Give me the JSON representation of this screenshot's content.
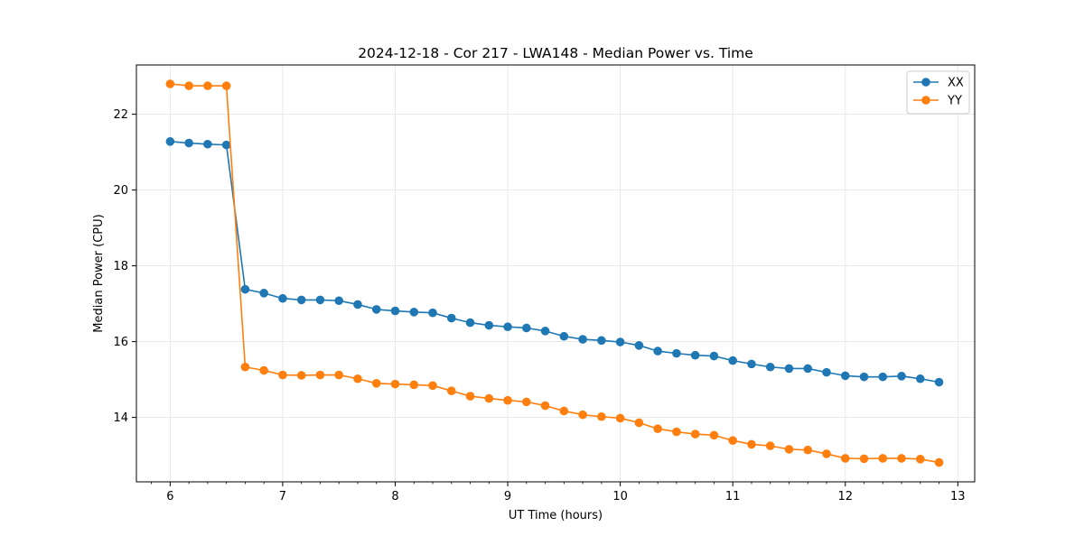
{
  "chart_data": {
    "type": "line",
    "title": "2024-12-18 - Cor 217 - LWA148 - Median Power vs. Time",
    "xlabel": "UT Time (hours)",
    "ylabel": "Median Power (CPU)",
    "xlim": [
      5.7,
      13.15
    ],
    "ylim": [
      12.3,
      23.3
    ],
    "xticks": [
      6,
      7,
      8,
      9,
      10,
      11,
      12,
      13
    ],
    "xtick_labels": [
      "6",
      "7",
      "8",
      "9",
      "10",
      "11",
      "12",
      "13"
    ],
    "yticks": [
      14,
      16,
      18,
      20,
      22
    ],
    "ytick_labels": [
      "14",
      "16",
      "18",
      "20",
      "22"
    ],
    "grid": true,
    "legend_position": "top-right",
    "x": [
      6.0,
      6.1667,
      6.3333,
      6.5,
      6.6667,
      6.8333,
      7.0,
      7.1667,
      7.3333,
      7.5,
      7.6667,
      7.8333,
      8.0,
      8.1667,
      8.3333,
      8.5,
      8.6667,
      8.8333,
      9.0,
      9.1667,
      9.3333,
      9.5,
      9.6667,
      9.8333,
      10.0,
      10.1667,
      10.3333,
      10.5,
      10.6667,
      10.8333,
      11.0,
      11.1667,
      11.3333,
      11.5,
      11.6667,
      11.8333,
      12.0,
      12.1667,
      12.3333,
      12.5,
      12.6667,
      12.8333
    ],
    "series": [
      {
        "name": "XX",
        "color": "#1f77b4",
        "values": [
          21.28,
          21.24,
          21.21,
          21.19,
          17.38,
          17.28,
          17.14,
          17.1,
          17.1,
          17.08,
          16.98,
          16.85,
          16.81,
          16.78,
          16.76,
          16.62,
          16.5,
          16.43,
          16.39,
          16.36,
          16.28,
          16.14,
          16.06,
          16.03,
          15.99,
          15.9,
          15.75,
          15.69,
          15.64,
          15.62,
          15.5,
          15.41,
          15.33,
          15.29,
          15.29,
          15.19,
          15.1,
          15.07,
          15.07,
          15.09,
          15.02,
          14.93
        ]
      },
      {
        "name": "YY",
        "color": "#ff7f0e",
        "values": [
          22.8,
          22.75,
          22.75,
          22.75,
          15.33,
          15.24,
          15.12,
          15.11,
          15.12,
          15.12,
          15.02,
          14.9,
          14.88,
          14.86,
          14.84,
          14.7,
          14.56,
          14.5,
          14.45,
          14.41,
          14.31,
          14.17,
          14.07,
          14.02,
          13.98,
          13.86,
          13.7,
          13.62,
          13.56,
          13.53,
          13.39,
          13.29,
          13.25,
          13.16,
          13.14,
          13.04,
          12.92,
          12.91,
          12.92,
          12.92,
          12.9,
          12.81
        ]
      }
    ]
  }
}
